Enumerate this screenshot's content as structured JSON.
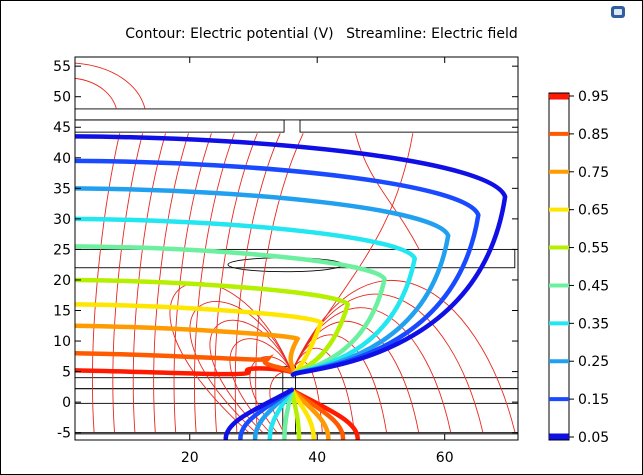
{
  "chart_data": {
    "type": "contour",
    "title_left": "Contour: Electric potential (V)",
    "title_right": "Streamline: Electric field",
    "xlabel": "",
    "ylabel": "",
    "x_ticks": [
      20,
      40,
      60
    ],
    "y_ticks": [
      -5,
      0,
      5,
      10,
      15,
      20,
      25,
      30,
      35,
      40,
      45,
      50,
      55
    ],
    "xlim": [
      2,
      71.5
    ],
    "ylim": [
      -6.2,
      56.5
    ],
    "colorbar": {
      "ticks": [
        "0.95",
        "0.85",
        "0.75",
        "0.65",
        "0.55",
        "0.45",
        "0.35",
        "0.25",
        "0.15",
        "0.05"
      ],
      "colors": [
        "#ff1a00",
        "#ff5a00",
        "#ff9a00",
        "#ffe600",
        "#b4f000",
        "#6cf0a0",
        "#22e6f0",
        "#22a0f0",
        "#1a4aff",
        "#1010e6"
      ]
    },
    "contour_levels": [
      {
        "level": 0.95,
        "y_left": 5.2
      },
      {
        "level": 0.85,
        "y_left": 8.0
      },
      {
        "level": 0.75,
        "y_left": 12.5
      },
      {
        "level": 0.65,
        "y_left": 16.0
      },
      {
        "level": 0.55,
        "y_left": 20.0
      },
      {
        "level": 0.45,
        "y_left": 25.5
      },
      {
        "level": 0.35,
        "y_left": 30.0
      },
      {
        "level": 0.25,
        "y_left": 35.0
      },
      {
        "level": 0.15,
        "y_left": 39.5
      },
      {
        "level": 0.05,
        "y_left": 43.5
      }
    ]
  },
  "icons": {
    "corner": "view-cube-icon"
  }
}
